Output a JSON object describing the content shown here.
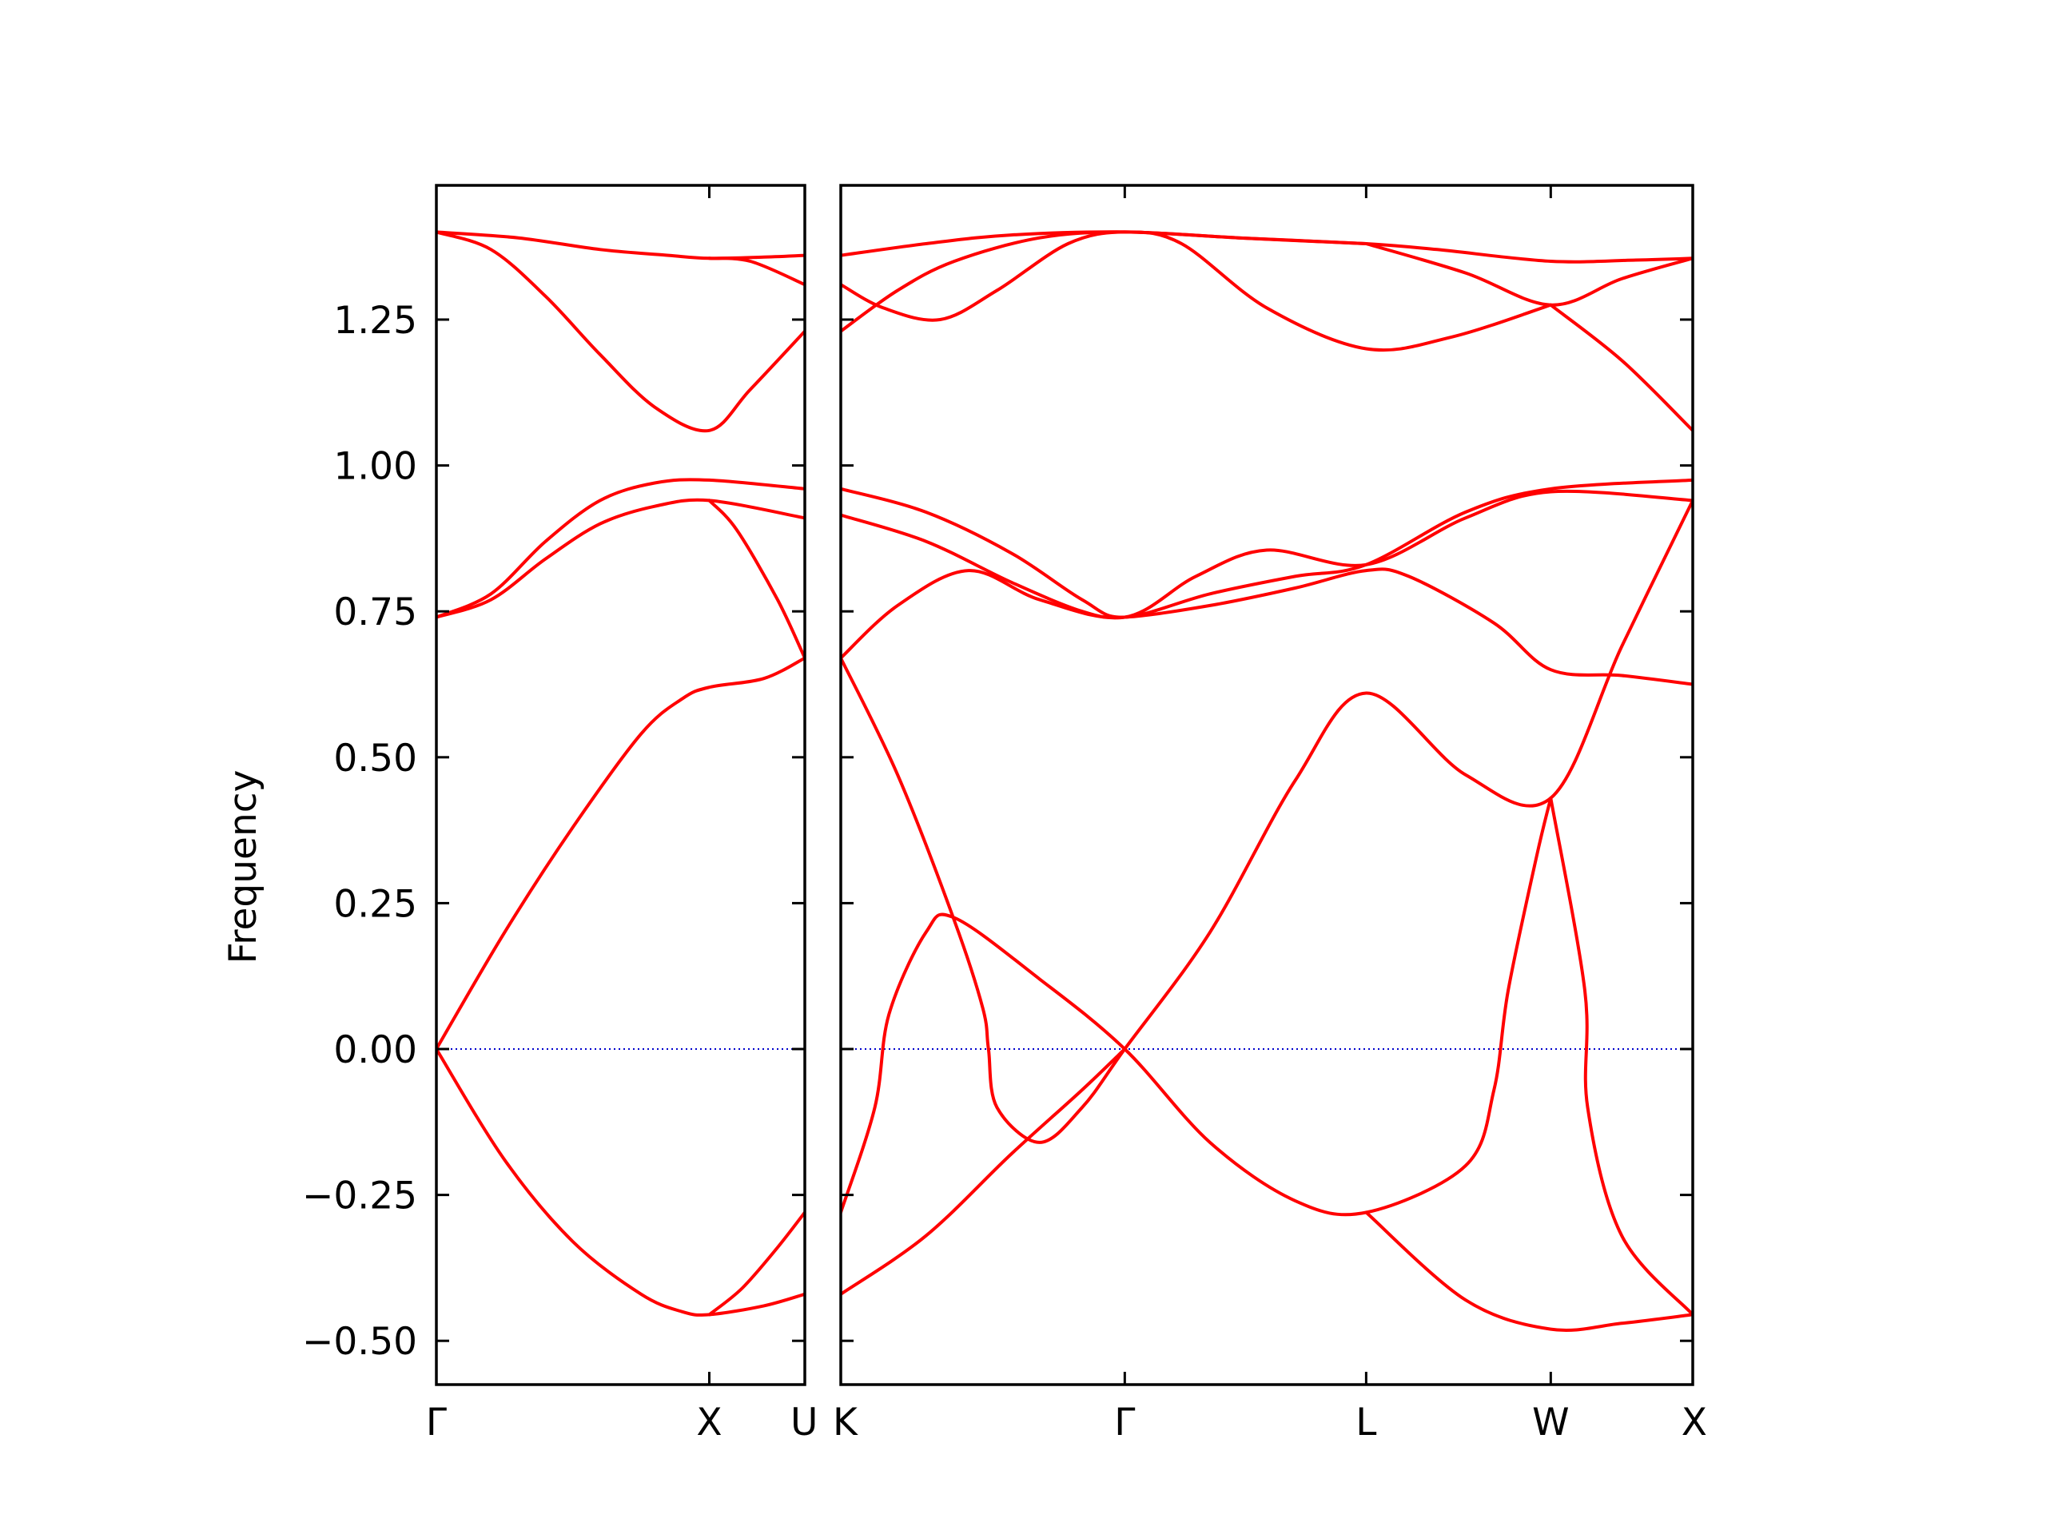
{
  "chart_data": {
    "type": "line",
    "ylabel": "Frequency",
    "ylim": [
      -0.575,
      1.48
    ],
    "yticks": [
      {
        "value": -0.5,
        "label": "−0.50"
      },
      {
        "value": -0.25,
        "label": "−0.25"
      },
      {
        "value": 0.0,
        "label": "0.00"
      },
      {
        "value": 0.25,
        "label": "0.25"
      },
      {
        "value": 0.5,
        "label": "0.50"
      },
      {
        "value": 0.75,
        "label": "0.75"
      },
      {
        "value": 1.0,
        "label": "1.00"
      },
      {
        "value": 1.25,
        "label": "1.25"
      }
    ],
    "zero_line": {
      "y": 0,
      "color": "#0000cc",
      "style": "dotted"
    },
    "band_color": "#ff0000",
    "grid": false,
    "panels": [
      {
        "name": "left",
        "path_points": [
          "Γ",
          "X",
          "U"
        ],
        "xlim": [
          0,
          1.35
        ],
        "high_symmetry_x": [
          0,
          1.0,
          1.35
        ],
        "bands": [
          [
            [
              0,
              1.4
            ],
            [
              0.3,
              1.39
            ],
            [
              0.6,
              1.37
            ],
            [
              0.85,
              1.36
            ],
            [
              1.0,
              1.355
            ],
            [
              1.2,
              1.357
            ],
            [
              1.35,
              1.36
            ]
          ],
          [
            [
              0,
              1.4
            ],
            [
              0.2,
              1.37
            ],
            [
              0.4,
              1.29
            ],
            [
              0.6,
              1.19
            ],
            [
              0.8,
              1.1
            ],
            [
              1.0,
              1.06
            ],
            [
              1.15,
              1.13
            ],
            [
              1.35,
              1.23
            ]
          ],
          [
            [
              1.0,
              1.355
            ],
            [
              1.15,
              1.35
            ],
            [
              1.35,
              1.31
            ]
          ],
          [
            [
              0,
              0.74
            ],
            [
              0.2,
              0.78
            ],
            [
              0.4,
              0.87
            ],
            [
              0.6,
              0.94
            ],
            [
              0.8,
              0.97
            ],
            [
              1.0,
              0.975
            ],
            [
              1.35,
              0.96
            ]
          ],
          [
            [
              0,
              0.74
            ],
            [
              0.2,
              0.77
            ],
            [
              0.4,
              0.84
            ],
            [
              0.6,
              0.9
            ],
            [
              0.8,
              0.93
            ],
            [
              1.0,
              0.94
            ],
            [
              1.35,
              0.91
            ]
          ],
          [
            [
              1.0,
              0.94
            ],
            [
              1.1,
              0.89
            ],
            [
              1.25,
              0.77
            ],
            [
              1.35,
              0.67
            ]
          ],
          [
            [
              0,
              0
            ],
            [
              0.25,
              0.2
            ],
            [
              0.5,
              0.38
            ],
            [
              0.75,
              0.54
            ],
            [
              0.9,
              0.6
            ],
            [
              1.0,
              0.62
            ],
            [
              1.2,
              0.635
            ],
            [
              1.35,
              0.67
            ]
          ],
          [
            [
              0,
              0
            ],
            [
              0.25,
              -0.19
            ],
            [
              0.5,
              -0.33
            ],
            [
              0.75,
              -0.42
            ],
            [
              0.9,
              -0.45
            ],
            [
              1.0,
              -0.455
            ],
            [
              1.2,
              -0.44
            ],
            [
              1.35,
              -0.42
            ]
          ],
          [
            [
              1.0,
              -0.455
            ],
            [
              1.12,
              -0.41
            ],
            [
              1.25,
              -0.34
            ],
            [
              1.35,
              -0.28
            ]
          ]
        ]
      },
      {
        "name": "right",
        "path_points": [
          "K",
          "Γ",
          "L",
          "W",
          "X"
        ],
        "xlim": [
          0,
          3.0
        ],
        "high_symmetry_x": [
          0,
          1.0,
          1.85,
          2.5,
          3.0
        ],
        "bands": [
          [
            [
              0,
              1.36
            ],
            [
              0.3,
              1.38
            ],
            [
              0.6,
              1.395
            ],
            [
              1.0,
              1.4
            ],
            [
              1.4,
              1.39
            ],
            [
              1.85,
              1.38
            ],
            [
              2.1,
              1.37
            ],
            [
              2.5,
              1.35
            ],
            [
              2.8,
              1.352
            ],
            [
              3.0,
              1.355
            ]
          ],
          [
            [
              0,
              1.23
            ],
            [
              0.2,
              1.3
            ],
            [
              0.4,
              1.35
            ],
            [
              0.7,
              1.39
            ],
            [
              1.0,
              1.4
            ],
            [
              1.4,
              1.39
            ],
            [
              1.85,
              1.38
            ]
          ],
          [
            [
              0,
              1.31
            ],
            [
              0.15,
              1.27
            ],
            [
              0.35,
              1.25
            ],
            [
              0.55,
              1.3
            ],
            [
              0.8,
              1.38
            ],
            [
              1.0,
              1.4
            ],
            [
              1.2,
              1.38
            ],
            [
              1.5,
              1.27
            ],
            [
              1.85,
              1.2
            ],
            [
              2.15,
              1.22
            ],
            [
              2.5,
              1.275
            ]
          ],
          [
            [
              1.85,
              1.38
            ],
            [
              2.2,
              1.33
            ],
            [
              2.5,
              1.275
            ],
            [
              2.75,
              1.32
            ],
            [
              3.0,
              1.355
            ]
          ],
          [
            [
              2.5,
              1.275
            ],
            [
              2.75,
              1.18
            ],
            [
              3.0,
              1.06
            ]
          ],
          [
            [
              0,
              0.96
            ],
            [
              0.3,
              0.92
            ],
            [
              0.6,
              0.85
            ],
            [
              0.85,
              0.77
            ],
            [
              1.0,
              0.74
            ],
            [
              1.3,
              0.78
            ],
            [
              1.6,
              0.81
            ],
            [
              1.85,
              0.83
            ],
            [
              2.2,
              0.92
            ],
            [
              2.5,
              0.96
            ],
            [
              3.0,
              0.975
            ]
          ],
          [
            [
              0,
              0.915
            ],
            [
              0.3,
              0.87
            ],
            [
              0.6,
              0.8
            ],
            [
              0.85,
              0.75
            ],
            [
              1.0,
              0.74
            ],
            [
              1.3,
              0.76
            ],
            [
              1.6,
              0.79
            ],
            [
              1.85,
              0.82
            ],
            [
              2.0,
              0.81
            ],
            [
              2.3,
              0.73
            ],
            [
              2.5,
              0.65
            ],
            [
              2.75,
              0.64
            ],
            [
              3.0,
              0.625
            ]
          ],
          [
            [
              0,
              0.67
            ],
            [
              0.2,
              0.76
            ],
            [
              0.45,
              0.82
            ],
            [
              0.7,
              0.77
            ],
            [
              1.0,
              0.74
            ],
            [
              1.25,
              0.81
            ],
            [
              1.5,
              0.855
            ],
            [
              1.85,
              0.83
            ],
            [
              2.2,
              0.91
            ],
            [
              2.5,
              0.955
            ],
            [
              3.0,
              0.94
            ]
          ],
          [
            [
              0,
              0.67
            ],
            [
              0.2,
              0.47
            ],
            [
              0.4,
              0.22
            ],
            [
              0.5,
              0.07
            ],
            [
              0.52,
              0.0
            ],
            [
              0.55,
              -0.1
            ],
            [
              0.7,
              -0.16
            ],
            [
              0.85,
              -0.1
            ],
            [
              1.0,
              0.0
            ],
            [
              1.3,
              0.2
            ],
            [
              1.6,
              0.46
            ],
            [
              1.85,
              0.61
            ],
            [
              2.2,
              0.47
            ],
            [
              2.5,
              0.43
            ],
            [
              2.75,
              0.69
            ],
            [
              3.0,
              0.94
            ]
          ],
          [
            [
              0,
              -0.28
            ],
            [
              0.12,
              -0.1
            ],
            [
              0.17,
              0.06
            ],
            [
              0.3,
              0.2
            ],
            [
              0.4,
              0.225
            ],
            [
              0.7,
              0.12
            ],
            [
              1.0,
              0.0
            ],
            [
              1.3,
              -0.16
            ],
            [
              1.6,
              -0.26
            ],
            [
              1.85,
              -0.28
            ],
            [
              2.2,
              -0.2
            ],
            [
              2.3,
              -0.07
            ],
            [
              2.35,
              0.1
            ],
            [
              2.45,
              0.33
            ],
            [
              2.5,
              0.43
            ]
          ],
          [
            [
              0,
              -0.42
            ],
            [
              0.3,
              -0.32
            ],
            [
              0.6,
              -0.18
            ],
            [
              0.85,
              -0.07
            ],
            [
              1.0,
              0.0
            ]
          ],
          [
            [
              1.85,
              -0.28
            ],
            [
              2.2,
              -0.43
            ],
            [
              2.5,
              -0.48
            ],
            [
              2.75,
              -0.47
            ],
            [
              3.0,
              -0.455
            ]
          ],
          [
            [
              2.5,
              0.43
            ],
            [
              2.62,
              0.1
            ],
            [
              2.63,
              -0.1
            ],
            [
              2.75,
              -0.32
            ],
            [
              3.0,
              -0.455
            ]
          ]
        ]
      }
    ]
  }
}
